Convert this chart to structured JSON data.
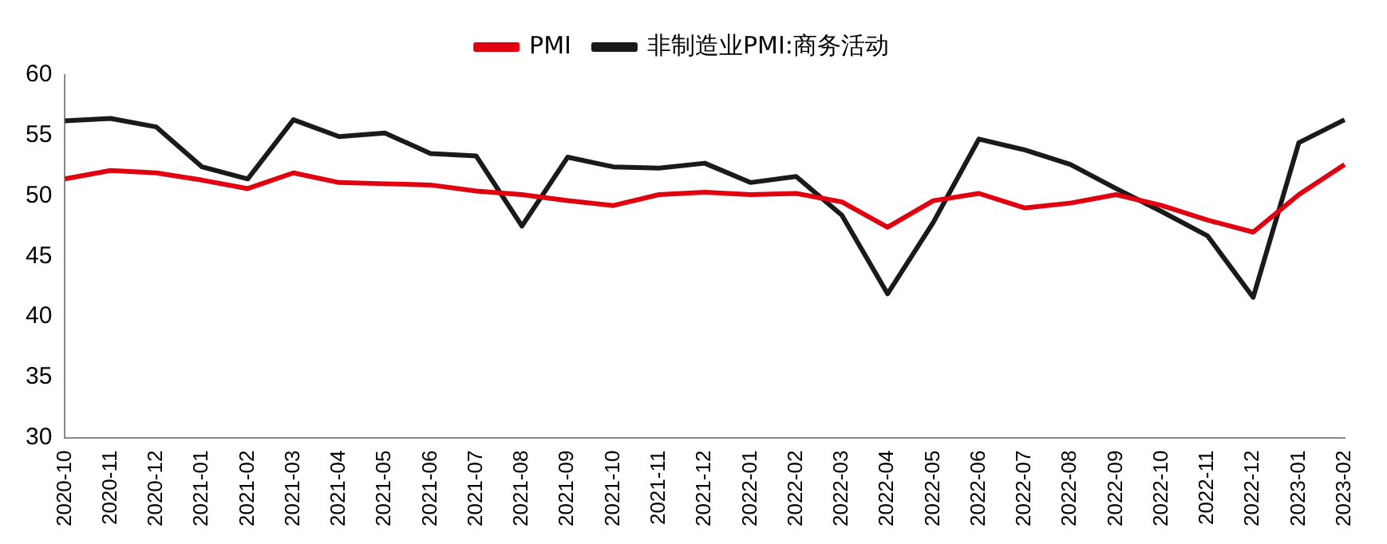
{
  "chart_data": {
    "type": "line",
    "categories": [
      "2020-10",
      "2020-11",
      "2020-12",
      "2021-01",
      "2021-02",
      "2021-03",
      "2021-04",
      "2021-05",
      "2021-06",
      "2021-07",
      "2021-08",
      "2021-09",
      "2021-10",
      "2021-11",
      "2021-12",
      "2022-01",
      "2022-02",
      "2022-03",
      "2022-04",
      "2022-05",
      "2022-06",
      "2022-07",
      "2022-08",
      "2022-09",
      "2022-10",
      "2022-11",
      "2022-12",
      "2023-01",
      "2023-02"
    ],
    "series": [
      {
        "name": "PMI",
        "color": "#e0000f",
        "values": [
          51.4,
          52.1,
          51.9,
          51.3,
          50.6,
          51.9,
          51.1,
          51.0,
          50.9,
          50.4,
          50.1,
          49.6,
          49.2,
          50.1,
          50.3,
          50.1,
          50.2,
          49.5,
          47.4,
          49.6,
          50.2,
          49.0,
          49.4,
          50.1,
          49.2,
          48.0,
          47.0,
          50.1,
          52.6
        ]
      },
      {
        "name": "非制造业PMI:商务活动",
        "color": "#1a1a1a",
        "values": [
          56.2,
          56.4,
          55.7,
          52.4,
          51.4,
          56.3,
          54.9,
          55.2,
          53.5,
          53.3,
          47.5,
          53.2,
          52.4,
          52.3,
          52.7,
          51.1,
          51.6,
          48.4,
          41.9,
          47.8,
          54.7,
          53.8,
          52.6,
          50.6,
          48.7,
          46.7,
          41.6,
          54.4,
          56.3
        ]
      }
    ],
    "ylim": [
      30,
      60
    ],
    "yticks": [
      30,
      35,
      40,
      45,
      50,
      55,
      60
    ],
    "grid": false,
    "legend": "top",
    "marker": "none",
    "line_style": "solid"
  }
}
